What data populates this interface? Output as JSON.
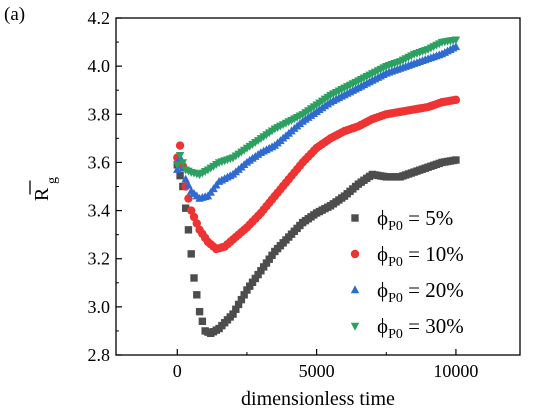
{
  "panel_label": "(a)",
  "chart_data": {
    "type": "scatter",
    "title": "",
    "xlabel": "dimensionless time",
    "ylabel_main": "R",
    "ylabel_sub": "g",
    "ylabel_overbar": true,
    "xlim": [
      -2200,
      12300
    ],
    "ylim": [
      2.8,
      4.2
    ],
    "xticks": [
      0,
      5000,
      10000
    ],
    "yticks": [
      2.8,
      3.0,
      3.2,
      3.4,
      3.6,
      3.8,
      4.0,
      4.2
    ],
    "ytick_labels": [
      "2.8",
      "3.0",
      "3.2",
      "3.4",
      "3.6",
      "3.8",
      "4.0",
      "4.2"
    ],
    "grid": false,
    "legend_position": "lower-right",
    "legend_prefix": "ϕ",
    "legend_sub": "P0",
    "series": [
      {
        "name": "= 5%",
        "color": "#4d4d4d",
        "marker": "square",
        "anchors": [
          [
            0,
            3.59
          ],
          [
            200,
            3.5
          ],
          [
            400,
            3.32
          ],
          [
            600,
            3.12
          ],
          [
            800,
            2.98
          ],
          [
            1000,
            2.9
          ],
          [
            1200,
            2.89
          ],
          [
            1500,
            2.91
          ],
          [
            2000,
            2.97
          ],
          [
            2500,
            3.07
          ],
          [
            3000,
            3.15
          ],
          [
            3500,
            3.23
          ],
          [
            4000,
            3.29
          ],
          [
            4500,
            3.35
          ],
          [
            5000,
            3.39
          ],
          [
            5500,
            3.42
          ],
          [
            6000,
            3.46
          ],
          [
            6500,
            3.51
          ],
          [
            7000,
            3.55
          ],
          [
            7500,
            3.54
          ],
          [
            8000,
            3.54
          ],
          [
            8500,
            3.56
          ],
          [
            9000,
            3.58
          ],
          [
            9500,
            3.6
          ],
          [
            10000,
            3.61
          ]
        ]
      },
      {
        "name": "= 10%",
        "color": "#ee3333",
        "marker": "circle",
        "anchors": [
          [
            0,
            3.62
          ],
          [
            100,
            3.67
          ],
          [
            300,
            3.5
          ],
          [
            500,
            3.4
          ],
          [
            800,
            3.32
          ],
          [
            1100,
            3.27
          ],
          [
            1400,
            3.24
          ],
          [
            1700,
            3.25
          ],
          [
            2000,
            3.28
          ],
          [
            2500,
            3.33
          ],
          [
            3000,
            3.39
          ],
          [
            3500,
            3.46
          ],
          [
            4000,
            3.53
          ],
          [
            4500,
            3.6
          ],
          [
            5000,
            3.66
          ],
          [
            5500,
            3.7
          ],
          [
            6000,
            3.73
          ],
          [
            6500,
            3.75
          ],
          [
            7000,
            3.78
          ],
          [
            7500,
            3.8
          ],
          [
            8000,
            3.81
          ],
          [
            8500,
            3.82
          ],
          [
            9000,
            3.83
          ],
          [
            9500,
            3.85
          ],
          [
            10000,
            3.86
          ]
        ]
      },
      {
        "name": "= 20%",
        "color": "#2f6ad0",
        "marker": "triangle-up",
        "anchors": [
          [
            0,
            3.57
          ],
          [
            100,
            3.62
          ],
          [
            300,
            3.53
          ],
          [
            500,
            3.48
          ],
          [
            800,
            3.45
          ],
          [
            1100,
            3.46
          ],
          [
            1500,
            3.52
          ],
          [
            2000,
            3.55
          ],
          [
            2500,
            3.6
          ],
          [
            3000,
            3.64
          ],
          [
            3500,
            3.67
          ],
          [
            4000,
            3.72
          ],
          [
            4500,
            3.77
          ],
          [
            5000,
            3.81
          ],
          [
            5500,
            3.85
          ],
          [
            6000,
            3.88
          ],
          [
            6500,
            3.91
          ],
          [
            7000,
            3.94
          ],
          [
            7500,
            3.97
          ],
          [
            8000,
            3.99
          ],
          [
            8500,
            4.01
          ],
          [
            9000,
            4.03
          ],
          [
            9500,
            4.05
          ],
          [
            10000,
            4.08
          ]
        ]
      },
      {
        "name": "= 30%",
        "color": "#2ca061",
        "marker": "triangle-down",
        "anchors": [
          [
            0,
            3.59
          ],
          [
            100,
            3.63
          ],
          [
            300,
            3.57
          ],
          [
            500,
            3.56
          ],
          [
            800,
            3.55
          ],
          [
            1100,
            3.57
          ],
          [
            1500,
            3.6
          ],
          [
            2000,
            3.62
          ],
          [
            2500,
            3.66
          ],
          [
            3000,
            3.7
          ],
          [
            3500,
            3.74
          ],
          [
            4000,
            3.77
          ],
          [
            4500,
            3.8
          ],
          [
            5000,
            3.84
          ],
          [
            5500,
            3.88
          ],
          [
            6000,
            3.91
          ],
          [
            6500,
            3.94
          ],
          [
            7000,
            3.97
          ],
          [
            7500,
            4.0
          ],
          [
            8000,
            4.02
          ],
          [
            8500,
            4.05
          ],
          [
            9000,
            4.07
          ],
          [
            9500,
            4.1
          ],
          [
            10000,
            4.11
          ]
        ]
      }
    ]
  }
}
